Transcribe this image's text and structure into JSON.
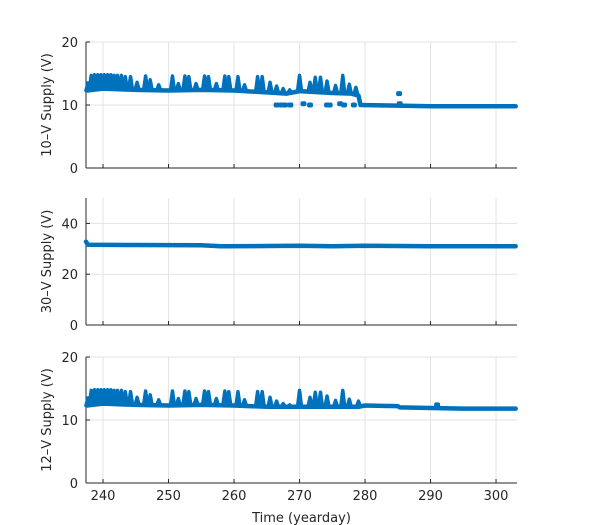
{
  "chart_data": [
    {
      "type": "line",
      "ylabel": "10–V Supply (V)",
      "ylim": [
        0,
        20
      ],
      "yticks": [
        0,
        10,
        20
      ],
      "xlim": [
        237.4,
        303.2
      ],
      "xticks": [
        240,
        250,
        260,
        270,
        280,
        290,
        300
      ],
      "show_xticklabels": false,
      "color": "#0072BD",
      "baseline": [
        [
          237.5,
          12.3
        ],
        [
          240,
          12.6
        ],
        [
          245,
          12.4
        ],
        [
          250,
          12.3
        ],
        [
          255,
          12.4
        ],
        [
          260,
          12.3
        ],
        [
          265,
          12.0
        ],
        [
          268,
          11.8
        ],
        [
          270,
          12.2
        ],
        [
          275,
          11.9
        ],
        [
          278,
          11.8
        ],
        [
          279,
          11.5
        ],
        [
          279.3,
          10.0
        ],
        [
          285,
          9.9
        ],
        [
          290,
          9.8
        ],
        [
          303,
          9.8
        ]
      ],
      "spikes": [
        [
          237.7,
          13.5
        ],
        [
          238.2,
          14.7
        ],
        [
          238.7,
          14.8
        ],
        [
          239.2,
          14.8
        ],
        [
          239.7,
          14.8
        ],
        [
          240.2,
          14.8
        ],
        [
          240.7,
          14.8
        ],
        [
          241.2,
          14.8
        ],
        [
          241.7,
          14.7
        ],
        [
          242.2,
          14.7
        ],
        [
          242.8,
          14.7
        ],
        [
          243.4,
          14.5
        ],
        [
          244.2,
          14.5
        ],
        [
          245.2,
          13.6
        ],
        [
          246.5,
          14.6
        ],
        [
          247.2,
          14.0
        ],
        [
          248.5,
          13.2
        ],
        [
          250.6,
          14.6
        ],
        [
          251.5,
          13.4
        ],
        [
          252.5,
          14.6
        ],
        [
          253.1,
          14.5
        ],
        [
          254.2,
          13.4
        ],
        [
          255.5,
          14.6
        ],
        [
          256.1,
          14.5
        ],
        [
          257.3,
          13.4
        ],
        [
          258.6,
          14.6
        ],
        [
          259.2,
          14.5
        ],
        [
          260.6,
          14.5
        ],
        [
          261.6,
          13.2
        ],
        [
          263.6,
          14.5
        ],
        [
          264.3,
          14.5
        ],
        [
          265.5,
          13.6
        ],
        [
          266.5,
          13.0
        ],
        [
          267.5,
          12.6
        ],
        [
          268.5,
          12.4
        ],
        [
          270.0,
          14.7
        ],
        [
          271.6,
          13.6
        ],
        [
          272.4,
          14.4
        ],
        [
          273.2,
          14.4
        ],
        [
          274.2,
          13.8
        ],
        [
          275.5,
          13.1
        ],
        [
          276.6,
          14.7
        ],
        [
          277.6,
          13.3
        ],
        [
          278.6,
          12.8
        ]
      ],
      "outliers": [
        [
          266.5,
          10.0
        ],
        [
          267.2,
          10.0
        ],
        [
          267.8,
          10.0
        ],
        [
          268.6,
          10.0
        ],
        [
          270.6,
          10.2
        ],
        [
          271.6,
          10.0
        ],
        [
          274.2,
          10.0
        ],
        [
          274.6,
          10.0
        ],
        [
          276.2,
          10.2
        ],
        [
          276.8,
          10.0
        ],
        [
          278.3,
          10.0
        ],
        [
          285.2,
          11.8
        ],
        [
          285.3,
          10.2
        ]
      ]
    },
    {
      "type": "line",
      "ylabel": "30–V Supply (V)",
      "ylim": [
        0,
        50
      ],
      "yticks": [
        0,
        20,
        40
      ],
      "xlim": [
        237.4,
        303.2
      ],
      "xticks": [
        240,
        250,
        260,
        270,
        280,
        290,
        300
      ],
      "show_xticklabels": false,
      "color": "#0072BD",
      "baseline": [
        [
          237.4,
          32.8
        ],
        [
          237.7,
          31.6
        ],
        [
          245,
          31.5
        ],
        [
          255,
          31.4
        ],
        [
          258,
          31.0
        ],
        [
          265,
          31.1
        ],
        [
          270,
          31.2
        ],
        [
          275,
          31.0
        ],
        [
          280,
          31.2
        ],
        [
          290,
          31.0
        ],
        [
          303,
          31.0
        ]
      ],
      "spikes": [],
      "outliers": []
    },
    {
      "type": "line",
      "ylabel": "12–V Supply (V)",
      "xlabel": "Time (yearday)",
      "ylim": [
        0,
        20
      ],
      "yticks": [
        0,
        10,
        20
      ],
      "xlim": [
        237.4,
        303.2
      ],
      "xticks": [
        240,
        250,
        260,
        270,
        280,
        290,
        300
      ],
      "show_xticklabels": true,
      "color": "#0072BD",
      "baseline": [
        [
          237.5,
          12.3
        ],
        [
          240,
          12.6
        ],
        [
          245,
          12.4
        ],
        [
          250,
          12.3
        ],
        [
          255,
          12.4
        ],
        [
          260,
          12.3
        ],
        [
          265,
          12.1
        ],
        [
          270,
          12.1
        ],
        [
          275,
          12.1
        ],
        [
          279,
          12.1
        ],
        [
          280,
          12.3
        ],
        [
          285,
          12.2
        ],
        [
          285.3,
          12.0
        ],
        [
          290,
          11.9
        ],
        [
          295,
          11.8
        ],
        [
          303,
          11.8
        ]
      ],
      "spikes": [
        [
          237.7,
          13.5
        ],
        [
          238.2,
          14.7
        ],
        [
          238.7,
          14.8
        ],
        [
          239.2,
          14.8
        ],
        [
          239.7,
          14.8
        ],
        [
          240.2,
          14.8
        ],
        [
          240.7,
          14.8
        ],
        [
          241.2,
          14.8
        ],
        [
          241.7,
          14.7
        ],
        [
          242.2,
          14.7
        ],
        [
          242.8,
          14.7
        ],
        [
          243.4,
          14.5
        ],
        [
          244.2,
          14.5
        ],
        [
          245.2,
          13.6
        ],
        [
          246.5,
          14.6
        ],
        [
          247.2,
          14.0
        ],
        [
          248.5,
          13.2
        ],
        [
          250.6,
          14.6
        ],
        [
          251.5,
          13.4
        ],
        [
          252.5,
          14.6
        ],
        [
          253.1,
          14.5
        ],
        [
          254.2,
          13.4
        ],
        [
          255.5,
          14.6
        ],
        [
          256.1,
          14.5
        ],
        [
          257.3,
          13.4
        ],
        [
          258.6,
          14.6
        ],
        [
          259.2,
          14.5
        ],
        [
          260.6,
          14.5
        ],
        [
          261.6,
          13.2
        ],
        [
          263.6,
          14.5
        ],
        [
          264.3,
          14.5
        ],
        [
          265.5,
          13.6
        ],
        [
          266.5,
          13.0
        ],
        [
          267.5,
          12.6
        ],
        [
          268.5,
          12.4
        ],
        [
          270.0,
          14.7
        ],
        [
          271.6,
          13.6
        ],
        [
          272.4,
          14.4
        ],
        [
          273.2,
          14.4
        ],
        [
          274.2,
          13.8
        ],
        [
          275.5,
          13.1
        ],
        [
          276.6,
          14.7
        ],
        [
          277.6,
          13.3
        ],
        [
          279.0,
          13.0
        ]
      ],
      "outliers": [
        [
          291.0,
          12.4
        ]
      ]
    }
  ]
}
